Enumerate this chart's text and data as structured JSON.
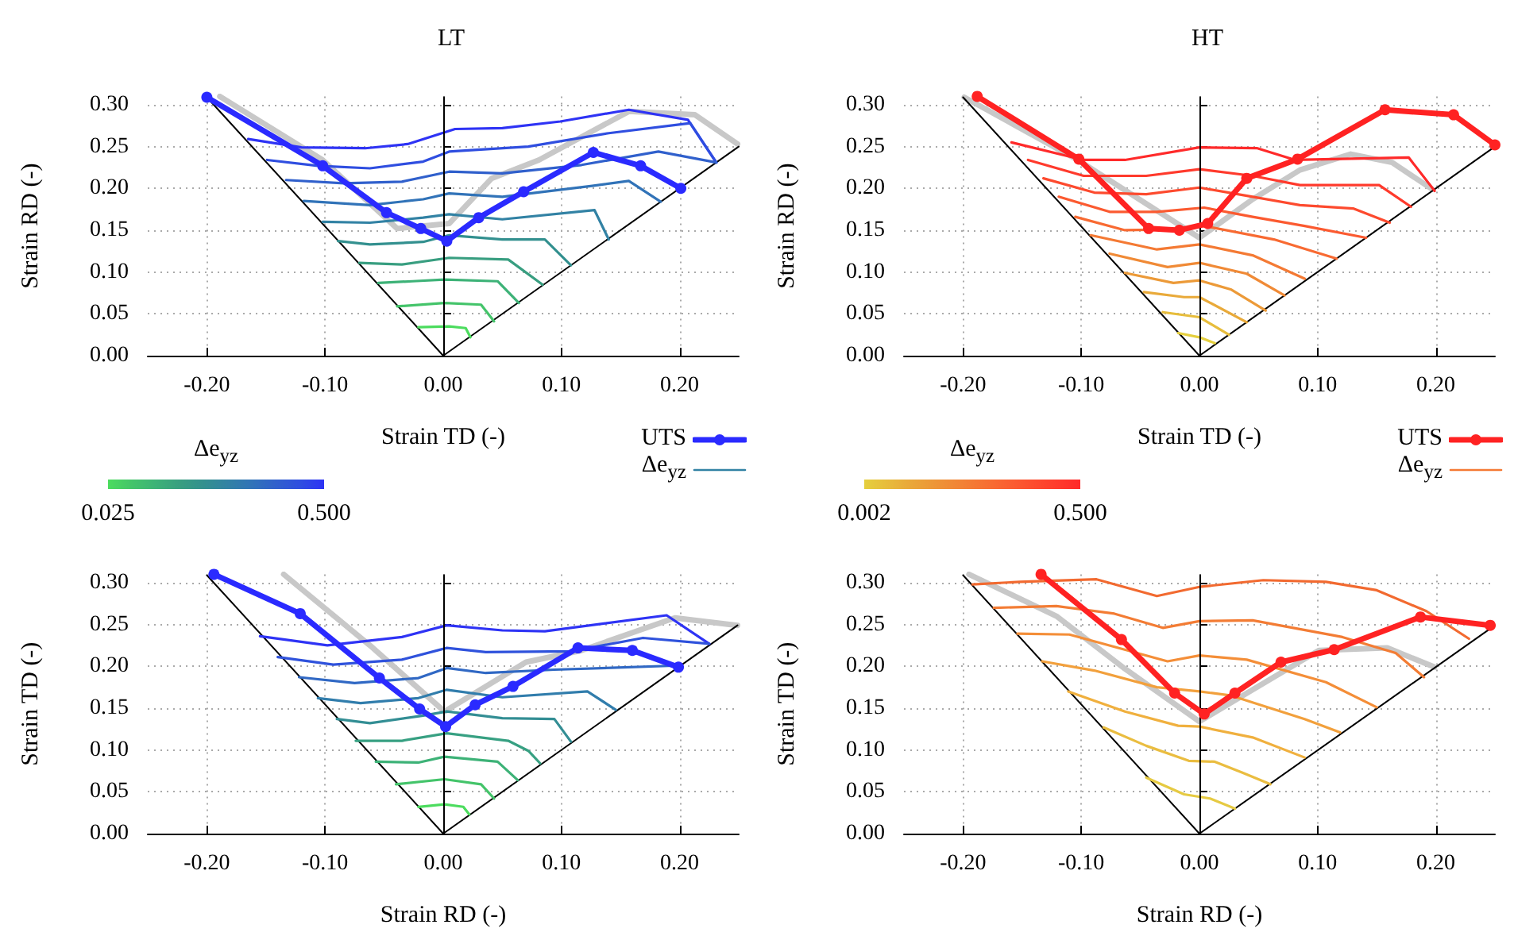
{
  "chart_data": [
    {
      "type": "line",
      "title": "LT",
      "xlabel": "Strain TD (-)",
      "ylabel": "Strain RD (-)",
      "clabel": "Δe$_{yz}$",
      "clim": [
        0.025,
        0.5
      ],
      "cticks": [
        {
          "value": 0.025,
          "label": "0.025"
        },
        {
          "value": 0.5,
          "label": "0.500"
        }
      ],
      "xlim": [
        -0.25,
        0.25
      ],
      "xticks": [
        {
          "value": -0.2,
          "label": "-0.20"
        },
        {
          "value": -0.1,
          "label": "-0.10"
        },
        {
          "value": 0,
          "label": "0.00"
        },
        {
          "value": 0.1,
          "label": "0.10"
        },
        {
          "value": 0.2,
          "label": "0.20"
        }
      ],
      "ylim": [
        0,
        0.31
      ],
      "yticks": [
        {
          "value": 0,
          "label": "0.00"
        },
        {
          "value": 0.05,
          "label": "0.05"
        },
        {
          "value": 0.1,
          "label": "0.10"
        },
        {
          "value": 0.15,
          "label": "0.15"
        },
        {
          "value": 0.2,
          "label": "0.20"
        },
        {
          "value": 0.25,
          "label": "0.25"
        },
        {
          "value": 0.3,
          "label": "0.30"
        }
      ],
      "grid": true,
      "legend": "bottom right",
      "marker": "none",
      "ref_lines": [
        {
          "axis": "x",
          "value": 0,
          "color": "#000000"
        }
      ],
      "series": [
        {
          "color": "#c8c8c8",
          "x": [
            -0.189,
            -0.102,
            -0.039,
            0.005,
            0.041,
            0.081,
            0.157,
            0.213,
            0.249
          ],
          "values": [
            0.31,
            0.234,
            0.152,
            0.158,
            0.212,
            0.234,
            0.292,
            0.288,
            0.253
          ]
        },
        {
          "color": "#000000",
          "x": [
            -0.2,
            0,
            0.25
          ],
          "values": [
            0.309,
            0,
            0.25
          ]
        },
        {
          "color": "#2e33f5",
          "x": [
            -0.165,
            -0.12,
            -0.066,
            -0.03,
            0.01,
            0.05,
            0.099,
            0.157,
            0.207,
            0.231
          ],
          "values": [
            0.259,
            0.249,
            0.248,
            0.253,
            0.271,
            0.272,
            0.28,
            0.294,
            0.282,
            0.231
          ]
        },
        {
          "color": "#2f4ee0",
          "x": [
            -0.149,
            -0.106,
            -0.062,
            -0.017,
            0.005,
            0.072,
            0.14,
            0.209,
            0.231
          ],
          "values": [
            0.234,
            0.227,
            0.224,
            0.232,
            0.244,
            0.25,
            0.266,
            0.278,
            0.231
          ]
        },
        {
          "color": "#3060cc",
          "x": [
            -0.133,
            -0.084,
            -0.035,
            0.005,
            0.05,
            0.117,
            0.182,
            0.231
          ],
          "values": [
            0.21,
            0.206,
            0.208,
            0.22,
            0.218,
            0.228,
            0.244,
            0.231
          ]
        },
        {
          "color": "#3173b8",
          "x": [
            -0.118,
            -0.062,
            -0.017,
            0.005,
            0.05,
            0.126,
            0.157,
            0.184
          ],
          "values": [
            0.185,
            0.18,
            0.187,
            0.194,
            0.19,
            0.203,
            0.209,
            0.184
          ]
        },
        {
          "name": "Δe$_{yz}$",
          "color": "#3282a4",
          "x": [
            -0.102,
            -0.062,
            -0.017,
            0.005,
            0.05,
            0.128,
            0.14
          ],
          "values": [
            0.16,
            0.159,
            0.165,
            0.169,
            0.163,
            0.174,
            0.139
          ]
        },
        {
          "color": "#33908f",
          "x": [
            -0.089,
            -0.062,
            -0.017,
            0.005,
            0.05,
            0.086,
            0.108
          ],
          "values": [
            0.137,
            0.133,
            0.136,
            0.144,
            0.139,
            0.139,
            0.108
          ]
        },
        {
          "color": "#389e80",
          "x": [
            -0.071,
            -0.035,
            0.005,
            0.055,
            0.084
          ],
          "values": [
            0.111,
            0.109,
            0.117,
            0.115,
            0.085
          ]
        },
        {
          "color": "#3db277",
          "x": [
            -0.055,
            -0.026,
            0.001,
            0.046,
            0.064
          ],
          "values": [
            0.087,
            0.089,
            0.091,
            0.089,
            0.063
          ]
        },
        {
          "color": "#44c46a",
          "x": [
            -0.039,
            0.001,
            0.032,
            0.043
          ],
          "values": [
            0.059,
            0.063,
            0.061,
            0.041
          ]
        },
        {
          "color": "#4cdc5e",
          "x": [
            -0.021,
            0.005,
            0.019,
            0.023
          ],
          "values": [
            0.034,
            0.035,
            0.033,
            0.022
          ]
        },
        {
          "name": "UTS",
          "color": "#2a2aff",
          "marker": "circle",
          "x": [
            -0.2,
            -0.102,
            -0.048,
            -0.019,
            0.003,
            0.03,
            0.068,
            0.127,
            0.167,
            0.201
          ],
          "values": [
            0.309,
            0.227,
            0.171,
            0.152,
            0.137,
            0.165,
            0.196,
            0.243,
            0.227,
            0.2
          ]
        }
      ]
    },
    {
      "type": "line",
      "title": "HT",
      "xlabel": "Strain TD (-)",
      "ylabel": "Strain RD (-)",
      "clabel": "Δe$_{yz}$",
      "clim": [
        0.002,
        0.5
      ],
      "cticks": [
        {
          "value": 0.002,
          "label": "0.002"
        },
        {
          "value": 0.5,
          "label": "0.500"
        }
      ],
      "xlim": [
        -0.25,
        0.25
      ],
      "xticks": [
        {
          "value": -0.2,
          "label": "-0.20"
        },
        {
          "value": -0.1,
          "label": "-0.10"
        },
        {
          "value": 0,
          "label": "0.00"
        },
        {
          "value": 0.1,
          "label": "0.10"
        },
        {
          "value": 0.2,
          "label": "0.20"
        }
      ],
      "ylim": [
        0,
        0.31
      ],
      "yticks": [
        {
          "value": 0,
          "label": "0.00"
        },
        {
          "value": 0.05,
          "label": "0.05"
        },
        {
          "value": 0.1,
          "label": "0.10"
        },
        {
          "value": 0.15,
          "label": "0.15"
        },
        {
          "value": 0.2,
          "label": "0.20"
        },
        {
          "value": 0.25,
          "label": "0.25"
        },
        {
          "value": 0.3,
          "label": "0.30"
        }
      ],
      "grid": true,
      "legend": "bottom right",
      "marker": "none",
      "ref_lines": [
        {
          "axis": "x",
          "value": 0,
          "color": "#000000"
        }
      ],
      "series": [
        {
          "color": "#c8c8c8",
          "x": [
            -0.199,
            -0.103,
            0,
            0.045,
            0.085,
            0.128,
            0.163,
            0.197
          ],
          "values": [
            0.309,
            0.234,
            0.141,
            0.187,
            0.222,
            0.241,
            0.231,
            0.199
          ]
        },
        {
          "color": "#000000",
          "x": [
            -0.2,
            0,
            0.25
          ],
          "values": [
            0.309,
            0,
            0.25
          ]
        },
        {
          "color": "#ff2a2a",
          "x": [
            -0.159,
            -0.098,
            -0.063,
            0,
            0.049,
            0.081,
            0.177,
            0.199
          ],
          "values": [
            0.255,
            0.234,
            0.234,
            0.249,
            0.248,
            0.234,
            0.237,
            0.197
          ]
        },
        {
          "color": "#ff3a2c",
          "x": [
            -0.145,
            -0.098,
            -0.045,
            0,
            0.045,
            0.085,
            0.152,
            0.179
          ],
          "values": [
            0.234,
            0.215,
            0.215,
            0.223,
            0.215,
            0.204,
            0.204,
            0.178
          ]
        },
        {
          "color": "#fd4a2e",
          "x": [
            -0.132,
            -0.089,
            -0.045,
            0,
            0.045,
            0.085,
            0.13,
            0.161
          ],
          "values": [
            0.212,
            0.195,
            0.193,
            0.201,
            0.19,
            0.18,
            0.176,
            0.159
          ]
        },
        {
          "color": "#fb5a30",
          "x": [
            -0.119,
            -0.076,
            -0.036,
            0.004,
            0.045,
            0.089,
            0.141
          ],
          "values": [
            0.19,
            0.172,
            0.172,
            0.177,
            0.166,
            0.155,
            0.141
          ]
        },
        {
          "color": "#f86a32",
          "x": [
            -0.105,
            -0.063,
            -0.018,
            0.004,
            0.063,
            0.116
          ],
          "values": [
            0.166,
            0.15,
            0.151,
            0.155,
            0.139,
            0.116
          ]
        },
        {
          "name": "Δe$_{yz}$",
          "color": "#f47a34",
          "x": [
            -0.092,
            -0.036,
            0,
            0.045,
            0.089
          ],
          "values": [
            0.144,
            0.127,
            0.133,
            0.12,
            0.092
          ]
        },
        {
          "color": "#f08a36",
          "x": [
            -0.076,
            -0.027,
            0,
            0.04,
            0.072
          ],
          "values": [
            0.122,
            0.106,
            0.111,
            0.098,
            0.072
          ]
        },
        {
          "color": "#ec9a38",
          "x": [
            -0.063,
            -0.022,
            0,
            0.027,
            0.056
          ],
          "values": [
            0.099,
            0.087,
            0.09,
            0.079,
            0.054
          ]
        },
        {
          "color": "#e9aa3a",
          "x": [
            -0.047,
            -0.013,
            0,
            0.04
          ],
          "values": [
            0.076,
            0.07,
            0.07,
            0.04
          ]
        },
        {
          "color": "#e7bd3c",
          "x": [
            -0.031,
            0,
            0.025
          ],
          "values": [
            0.052,
            0.046,
            0.025
          ]
        },
        {
          "color": "#e5cf3e",
          "x": [
            -0.018,
            0,
            0.013
          ],
          "values": [
            0.027,
            0.022,
            0.015
          ]
        },
        {
          "name": "UTS",
          "color": "#ff2222",
          "marker": "circle",
          "x": [
            -0.188,
            -0.102,
            -0.043,
            -0.017,
            0.007,
            0.04,
            0.083,
            0.157,
            0.215,
            0.25
          ],
          "values": [
            0.31,
            0.235,
            0.152,
            0.15,
            0.158,
            0.212,
            0.235,
            0.294,
            0.288,
            0.252
          ]
        }
      ]
    },
    {
      "type": "line",
      "xlabel": "Strain RD (-)",
      "ylabel": "Strain TD (-)",
      "xlim": [
        -0.25,
        0.25
      ],
      "xticks": [
        {
          "value": -0.2,
          "label": "-0.20"
        },
        {
          "value": -0.1,
          "label": "-0.10"
        },
        {
          "value": 0,
          "label": "0.00"
        },
        {
          "value": 0.1,
          "label": "0.10"
        },
        {
          "value": 0.2,
          "label": "0.20"
        }
      ],
      "ylim": [
        0,
        0.31
      ],
      "yticks": [
        {
          "value": 0,
          "label": "0.00"
        },
        {
          "value": 0.05,
          "label": "0.05"
        },
        {
          "value": 0.1,
          "label": "0.10"
        },
        {
          "value": 0.15,
          "label": "0.15"
        },
        {
          "value": 0.2,
          "label": "0.20"
        },
        {
          "value": 0.25,
          "label": "0.25"
        },
        {
          "value": 0.3,
          "label": "0.30"
        }
      ],
      "grid": true,
      "marker": "none",
      "ref_lines": [
        {
          "axis": "x",
          "value": 0,
          "color": "#000000"
        }
      ],
      "series": [
        {
          "color": "#c8c8c8",
          "x": [
            -0.135,
            -0.062,
            0.001,
            0.07,
            0.117,
            0.196,
            0.249
          ],
          "values": [
            0.31,
            0.225,
            0.146,
            0.205,
            0.219,
            0.258,
            0.249
          ]
        },
        {
          "color": "#000000",
          "x": [
            -0.2,
            0,
            0.249
          ],
          "values": [
            0.309,
            0,
            0.249
          ]
        },
        {
          "color": "#2e33f5",
          "x": [
            -0.155,
            -0.098,
            -0.035,
            0.003,
            0.05,
            0.086,
            0.189,
            0.225
          ],
          "values": [
            0.236,
            0.225,
            0.235,
            0.249,
            0.243,
            0.242,
            0.261,
            0.227
          ]
        },
        {
          "color": "#2f52dc",
          "x": [
            -0.14,
            -0.093,
            -0.035,
            0.003,
            0.036,
            0.108,
            0.169,
            0.225
          ],
          "values": [
            0.211,
            0.202,
            0.208,
            0.222,
            0.217,
            0.218,
            0.234,
            0.227
          ]
        },
        {
          "color": "#3068c4",
          "x": [
            -0.122,
            -0.075,
            -0.021,
            0.003,
            0.036,
            0.094,
            0.2
          ],
          "values": [
            0.187,
            0.18,
            0.186,
            0.198,
            0.192,
            0.196,
            0.201
          ]
        },
        {
          "color": "#317dac",
          "x": [
            -0.106,
            -0.07,
            -0.021,
            0.003,
            0.05,
            0.122,
            0.146
          ],
          "values": [
            0.162,
            0.156,
            0.162,
            0.172,
            0.163,
            0.17,
            0.148
          ]
        },
        {
          "color": "#338e94",
          "x": [
            -0.09,
            -0.062,
            -0.017,
            0.003,
            0.05,
            0.094,
            0.108
          ],
          "values": [
            0.137,
            0.132,
            0.141,
            0.146,
            0.138,
            0.137,
            0.11
          ]
        },
        {
          "color": "#37a082",
          "x": [
            -0.074,
            -0.035,
            0.003,
            0.055,
            0.072,
            0.082
          ],
          "values": [
            0.111,
            0.111,
            0.12,
            0.111,
            0.099,
            0.084
          ]
        },
        {
          "color": "#3db277",
          "x": [
            -0.057,
            -0.021,
            0.001,
            0.046,
            0.063
          ],
          "values": [
            0.086,
            0.085,
            0.092,
            0.086,
            0.064
          ]
        },
        {
          "color": "#44c46a",
          "x": [
            -0.04,
            0.001,
            0.032,
            0.043
          ],
          "values": [
            0.059,
            0.065,
            0.059,
            0.042
          ]
        },
        {
          "color": "#4cdc5e",
          "x": [
            -0.021,
            0.001,
            0.017,
            0.022
          ],
          "values": [
            0.032,
            0.035,
            0.032,
            0.023
          ]
        },
        {
          "color": "#2a2aff",
          "marker": "circle",
          "x": [
            -0.194,
            -0.121,
            -0.054,
            -0.02,
            0.002,
            0.027,
            0.059,
            0.114,
            0.16,
            0.199
          ],
          "values": [
            0.31,
            0.263,
            0.186,
            0.149,
            0.128,
            0.154,
            0.176,
            0.222,
            0.219,
            0.199
          ]
        }
      ]
    },
    {
      "type": "line",
      "xlabel": "Strain RD (-)",
      "ylabel": "Strain TD (-)",
      "xlim": [
        -0.25,
        0.25
      ],
      "xticks": [
        {
          "value": -0.2,
          "label": "-0.20"
        },
        {
          "value": -0.1,
          "label": "-0.10"
        },
        {
          "value": 0,
          "label": "0.00"
        },
        {
          "value": 0.1,
          "label": "0.10"
        },
        {
          "value": 0.2,
          "label": "0.20"
        }
      ],
      "ylim": [
        0,
        0.31
      ],
      "yticks": [
        {
          "value": 0,
          "label": "0.00"
        },
        {
          "value": 0.05,
          "label": "0.05"
        },
        {
          "value": 0.1,
          "label": "0.10"
        },
        {
          "value": 0.15,
          "label": "0.15"
        },
        {
          "value": 0.2,
          "label": "0.20"
        },
        {
          "value": 0.25,
          "label": "0.25"
        },
        {
          "value": 0.3,
          "label": "0.30"
        }
      ],
      "grid": true,
      "marker": "none",
      "ref_lines": [
        {
          "axis": "x",
          "value": 0,
          "color": "#000000"
        }
      ],
      "series": [
        {
          "color": "#c8c8c8",
          "x": [
            -0.195,
            -0.121,
            -0.063,
            0,
            0.045,
            0.101,
            0.159,
            0.199
          ],
          "values": [
            0.31,
            0.26,
            0.197,
            0.134,
            0.172,
            0.219,
            0.222,
            0.199
          ]
        },
        {
          "color": "#000000",
          "x": [
            -0.2,
            0,
            0.25
          ],
          "values": [
            0.309,
            0,
            0.249
          ]
        },
        {
          "color": "#f26a30",
          "x": [
            -0.192,
            -0.152,
            -0.087,
            -0.036,
            0,
            0.054,
            0.107,
            0.15,
            0.192,
            0.228
          ],
          "values": [
            0.298,
            0.301,
            0.304,
            0.284,
            0.295,
            0.303,
            0.301,
            0.291,
            0.266,
            0.233
          ]
        },
        {
          "color": "#f37c34",
          "x": [
            -0.174,
            -0.121,
            -0.072,
            -0.031,
            0,
            0.045,
            0.121,
            0.166,
            0.19
          ],
          "values": [
            0.27,
            0.272,
            0.263,
            0.246,
            0.254,
            0.255,
            0.235,
            0.216,
            0.187
          ]
        },
        {
          "color": "#f48e38",
          "x": [
            -0.154,
            -0.11,
            -0.027,
            0,
            0.04,
            0.107,
            0.15
          ],
          "values": [
            0.239,
            0.238,
            0.206,
            0.213,
            0.208,
            0.181,
            0.151
          ]
        },
        {
          "color": "#f2a03c",
          "x": [
            -0.133,
            -0.089,
            -0.036,
            0,
            0.027,
            0.089,
            0.119
          ],
          "values": [
            0.206,
            0.195,
            0.175,
            0.17,
            0.165,
            0.137,
            0.121
          ]
        },
        {
          "color": "#f0b03e",
          "x": [
            -0.111,
            -0.063,
            -0.018,
            0,
            0.045,
            0.089
          ],
          "values": [
            0.17,
            0.146,
            0.129,
            0.128,
            0.115,
            0.091
          ]
        },
        {
          "color": "#eabd40",
          "x": [
            -0.081,
            -0.045,
            -0.009,
            0.013,
            0.036,
            0.06
          ],
          "values": [
            0.127,
            0.105,
            0.087,
            0.086,
            0.073,
            0.059
          ]
        },
        {
          "color": "#e6ca42",
          "x": [
            -0.045,
            -0.013,
            0.009,
            0.03
          ],
          "values": [
            0.067,
            0.047,
            0.042,
            0.03
          ]
        },
        {
          "color": "#ff2222",
          "marker": "circle",
          "x": [
            -0.134,
            -0.066,
            -0.021,
            0.004,
            0.03,
            0.069,
            0.114,
            0.187,
            0.246
          ],
          "values": [
            0.31,
            0.232,
            0.168,
            0.143,
            0.168,
            0.205,
            0.22,
            0.259,
            0.249
          ]
        }
      ]
    }
  ]
}
